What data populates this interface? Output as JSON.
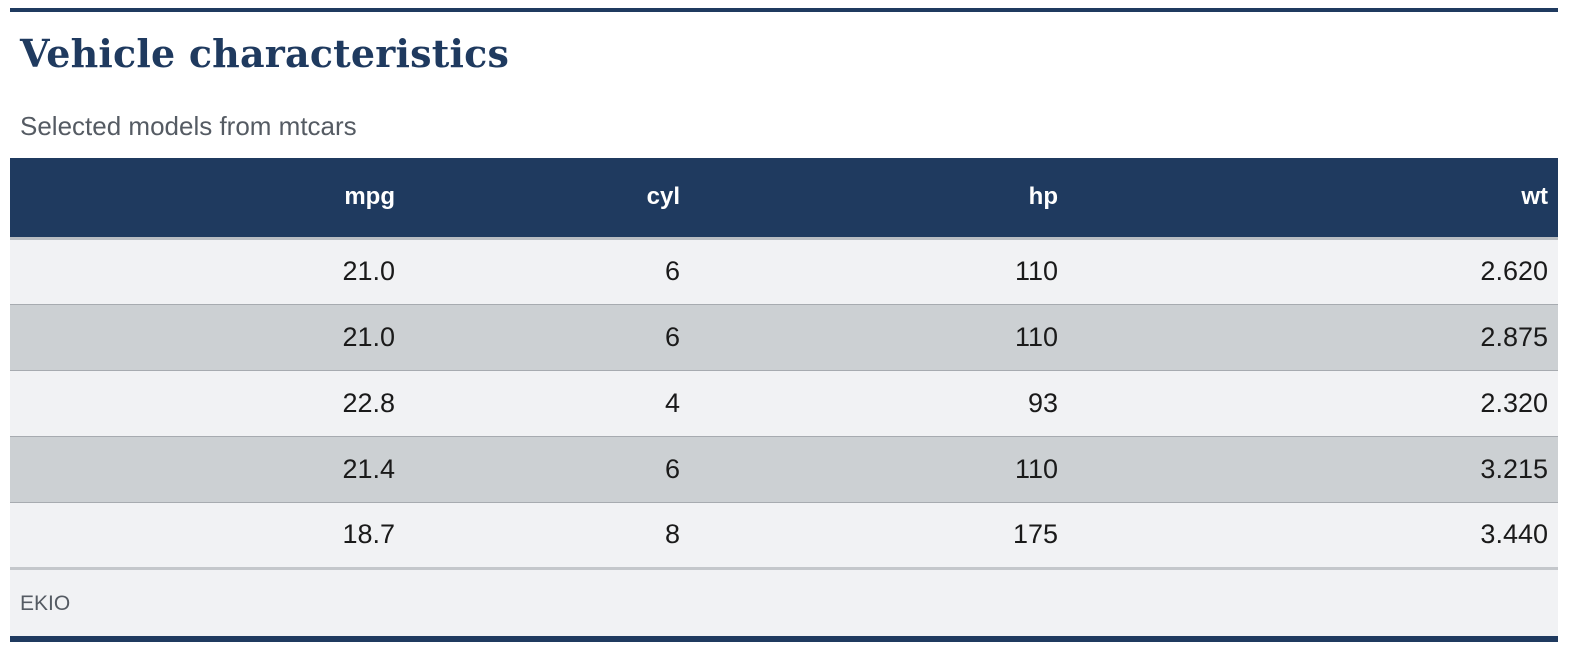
{
  "table": {
    "title": "Vehicle characteristics",
    "subtitle": "Selected models from mtcars",
    "columns": [
      "",
      "mpg",
      "cyl",
      "hp",
      "wt"
    ],
    "rows": [
      [
        "",
        "21.0",
        "6",
        "110",
        "2.620"
      ],
      [
        "",
        "21.0",
        "6",
        "110",
        "2.875"
      ],
      [
        "",
        "22.8",
        "4",
        "93",
        "2.320"
      ],
      [
        "",
        "21.4",
        "6",
        "110",
        "3.215"
      ],
      [
        "",
        "18.7",
        "8",
        "175",
        "3.440"
      ]
    ],
    "source_note": "EKIO"
  },
  "colors": {
    "header_bg": "#1f3a5f",
    "row_light": "#f1f2f4",
    "row_dark": "#ccd0d3",
    "title": "#1f3a5f"
  }
}
